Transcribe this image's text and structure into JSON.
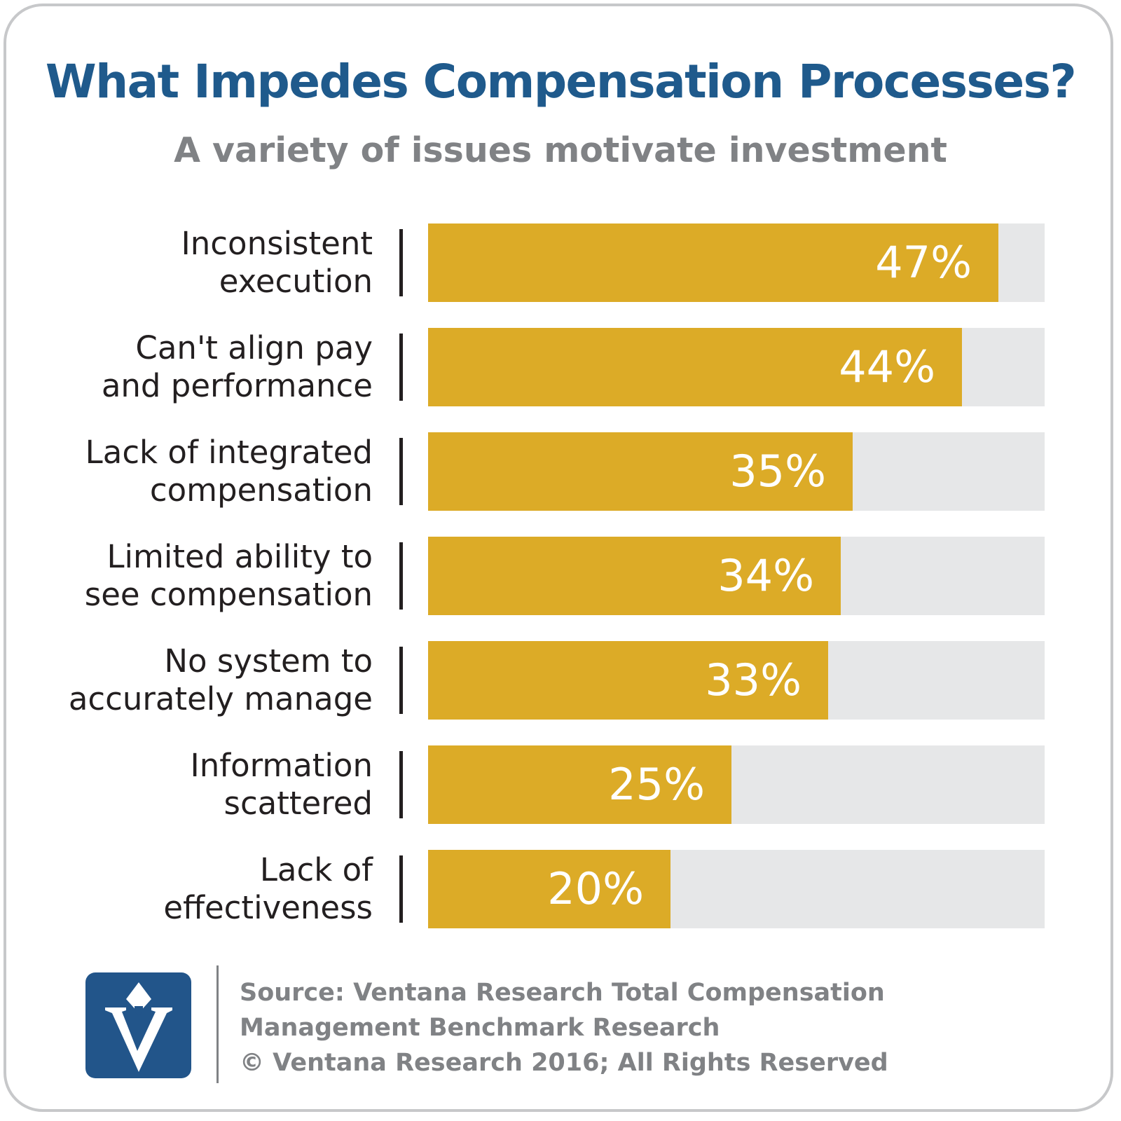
{
  "title": "What Impedes Compensation Processes?",
  "subtitle": "A variety of issues motivate investment",
  "chart_data": {
    "type": "bar",
    "orientation": "horizontal",
    "title": "What Impedes Compensation Processes?",
    "subtitle": "A variety of issues motivate investment",
    "categories": [
      [
        "Inconsistent",
        "execution"
      ],
      [
        "Can't align pay",
        "and performance"
      ],
      [
        "Lack of integrated",
        "compensation"
      ],
      [
        "Limited ability to",
        "see compensation"
      ],
      [
        "No system to",
        "accurately manage"
      ],
      [
        "Information",
        "scattered"
      ],
      [
        "Lack of",
        "effectiveness"
      ]
    ],
    "values": [
      47,
      44,
      35,
      34,
      33,
      25,
      20
    ],
    "value_labels": [
      "47%",
      "44%",
      "35%",
      "34%",
      "33%",
      "25%",
      "20%"
    ],
    "xlim": [
      0,
      50
    ],
    "bar_color": "#dcab27",
    "track_color": "#e6e7e8",
    "legend": "none",
    "grid": false
  },
  "footer": {
    "source_lines": [
      "Source: Ventana Research Total Compensation",
      "Management Benchmark Research",
      "© Ventana Research 2016; All Rights Reserved"
    ],
    "logo_icon": "ventana-v-logo-icon"
  },
  "colors": {
    "title": "#1f5a8c",
    "subtitle": "#808285",
    "logo_bg": "#22558a"
  }
}
